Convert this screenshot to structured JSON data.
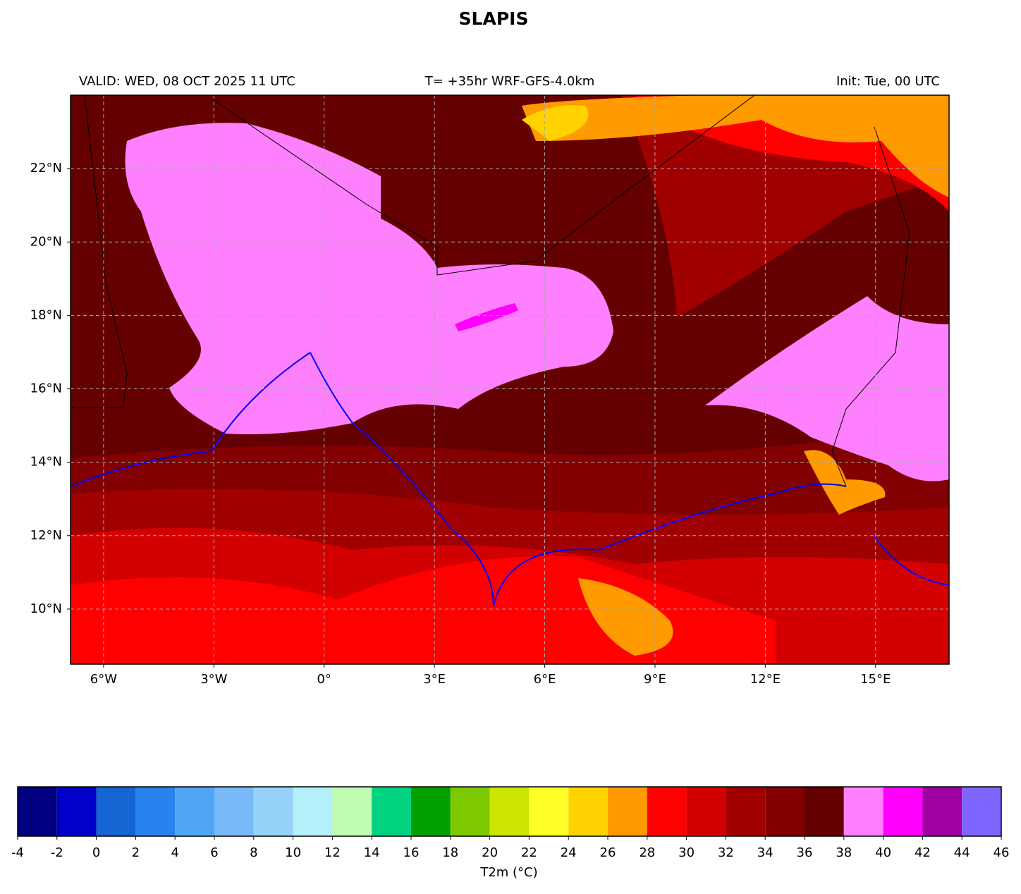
{
  "chart_data": {
    "type": "map",
    "title": "SLAPIS",
    "subtitle_left": "VALID: WED, 08 OCT 2025 11 UTC",
    "subtitle_center": "T= +35hr WRF-GFS-4.0km",
    "subtitle_right": "Init: Tue, 00 UTC",
    "xlim": [
      -6.9,
      17
    ],
    "ylim": [
      8.5,
      24
    ],
    "xticks": [
      {
        "value": -6,
        "label": "6°W"
      },
      {
        "value": -3,
        "label": "3°W"
      },
      {
        "value": 0,
        "label": "0°"
      },
      {
        "value": 3,
        "label": "3°E"
      },
      {
        "value": 6,
        "label": "6°E"
      },
      {
        "value": 9,
        "label": "9°E"
      },
      {
        "value": 12,
        "label": "12°E"
      },
      {
        "value": 15,
        "label": "15°E"
      }
    ],
    "yticks": [
      {
        "value": 10,
        "label": "10°N"
      },
      {
        "value": 12,
        "label": "12°N"
      },
      {
        "value": 14,
        "label": "14°N"
      },
      {
        "value": 16,
        "label": "16°N"
      },
      {
        "value": 18,
        "label": "18°N"
      },
      {
        "value": 20,
        "label": "20°N"
      },
      {
        "value": 22,
        "label": "22°N"
      }
    ],
    "grid": true,
    "colorbar": {
      "label": "T2m (°C)",
      "bounds": [
        -4,
        -2,
        0,
        2,
        4,
        6,
        8,
        10,
        12,
        14,
        16,
        18,
        20,
        22,
        24,
        26,
        28,
        30,
        32,
        34,
        36,
        38,
        40,
        42,
        44,
        46
      ],
      "colors": [
        "#000080",
        "#0000c8",
        "#1464d2",
        "#2882f0",
        "#50a5f5",
        "#78b9fa",
        "#96d2fa",
        "#b4f0fa",
        "#c0fcb4",
        "#00d280",
        "#00a000",
        "#7dc800",
        "#cce600",
        "#ffff28",
        "#ffd200",
        "#ff9a00",
        "#ff0000",
        "#d20000",
        "#a00000",
        "#820000",
        "#640000",
        "#ff80ff",
        "#ff00ff",
        "#a000a0",
        "#8064ff"
      ]
    }
  }
}
